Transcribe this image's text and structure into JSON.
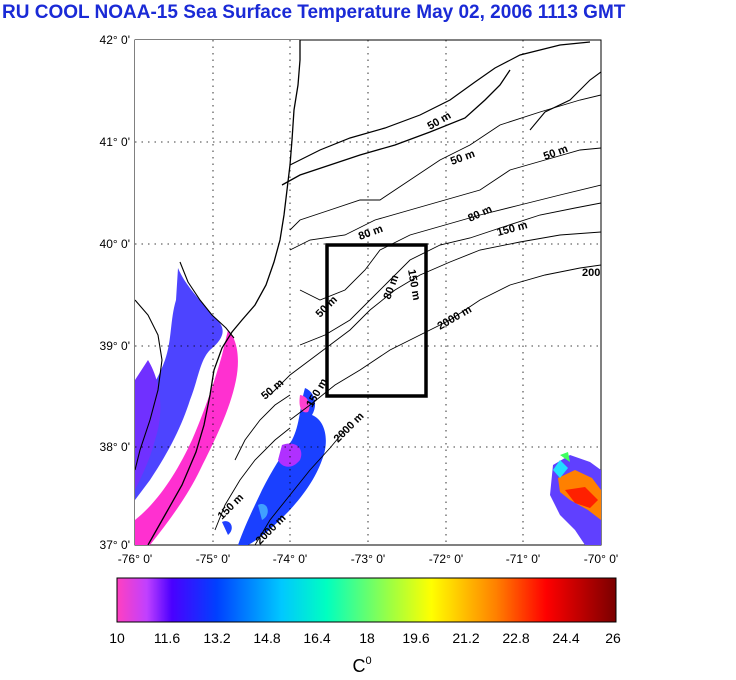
{
  "title": "RU COOL  NOAA-15 Sea Surface Temperature May 02, 2006 1113 GMT",
  "map": {
    "lat_labels": [
      "42° 0'",
      "41° 0'",
      "40° 0'",
      "39° 0'",
      "38° 0'",
      "37° 0'"
    ],
    "lon_labels": [
      "-76° 0'",
      "-75° 0'",
      "-74° 0'",
      "-73° 0'",
      "-72° 0'",
      "-71° 0'",
      "-70° 0'"
    ],
    "lat_range": [
      37,
      42
    ],
    "lon_range": [
      -76,
      -70
    ],
    "box_region": {
      "lon": [
        -73.5,
        -72.3
      ],
      "lat": [
        38.5,
        40.0
      ]
    },
    "contour_labels": [
      "50 m",
      "50 m",
      "50 m",
      "50 m",
      "80 m",
      "80 m",
      "80 m",
      "150 m",
      "150 m",
      "150 m",
      "200",
      "2000 m",
      "2000 m",
      "2000 m",
      "50 m",
      "150 m"
    ]
  },
  "colorbar": {
    "ticks": [
      "10",
      "11.6",
      "13.2",
      "14.8",
      "16.4",
      "18",
      "19.6",
      "21.2",
      "22.8",
      "24.4",
      "26"
    ],
    "unit_label": "C",
    "unit_sup": "0",
    "min": 10,
    "max": 26
  },
  "colors": {
    "title": "#1a2ad6",
    "box": "#000000"
  }
}
